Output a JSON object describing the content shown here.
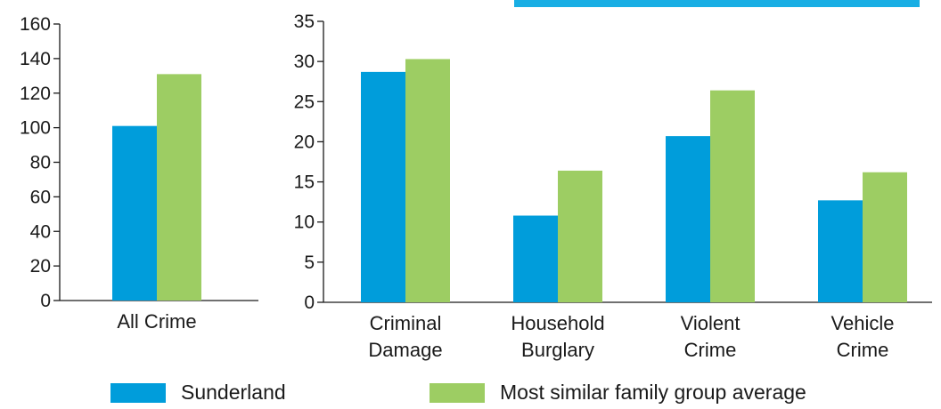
{
  "colors": {
    "sunderland": "#009ddb",
    "family_avg": "#9dcd63",
    "axis": "#1a1a1a",
    "top_bar": "#18aee4"
  },
  "legend": {
    "sunderland": "Sunderland",
    "family_avg": "Most similar family group average"
  },
  "chart_data": [
    {
      "type": "bar",
      "categories": [
        "All Crime"
      ],
      "series": [
        {
          "name": "Sunderland",
          "values": [
            101
          ]
        },
        {
          "name": "Most similar family group average",
          "values": [
            131
          ]
        }
      ],
      "yticks": [
        0,
        20,
        40,
        60,
        80,
        100,
        120,
        140,
        160
      ],
      "ylim": [
        0,
        160
      ],
      "grid": false,
      "legend_position": "bottom"
    },
    {
      "type": "bar",
      "categories": [
        "Criminal Damage",
        "Household Burglary",
        "Violent Crime",
        "Vehicle Crime"
      ],
      "category_lines": [
        [
          "Criminal",
          "Damage"
        ],
        [
          "Household",
          "Burglary"
        ],
        [
          "Violent",
          "Crime"
        ],
        [
          "Vehicle",
          "Crime"
        ]
      ],
      "series": [
        {
          "name": "Sunderland",
          "values": [
            28.7,
            10.8,
            20.7,
            12.7
          ]
        },
        {
          "name": "Most similar family group average",
          "values": [
            30.3,
            16.4,
            26.4,
            16.2
          ]
        }
      ],
      "yticks": [
        0,
        5,
        10,
        15,
        20,
        25,
        30,
        35
      ],
      "ylim": [
        0,
        35
      ],
      "grid": false,
      "legend_position": "bottom"
    }
  ]
}
